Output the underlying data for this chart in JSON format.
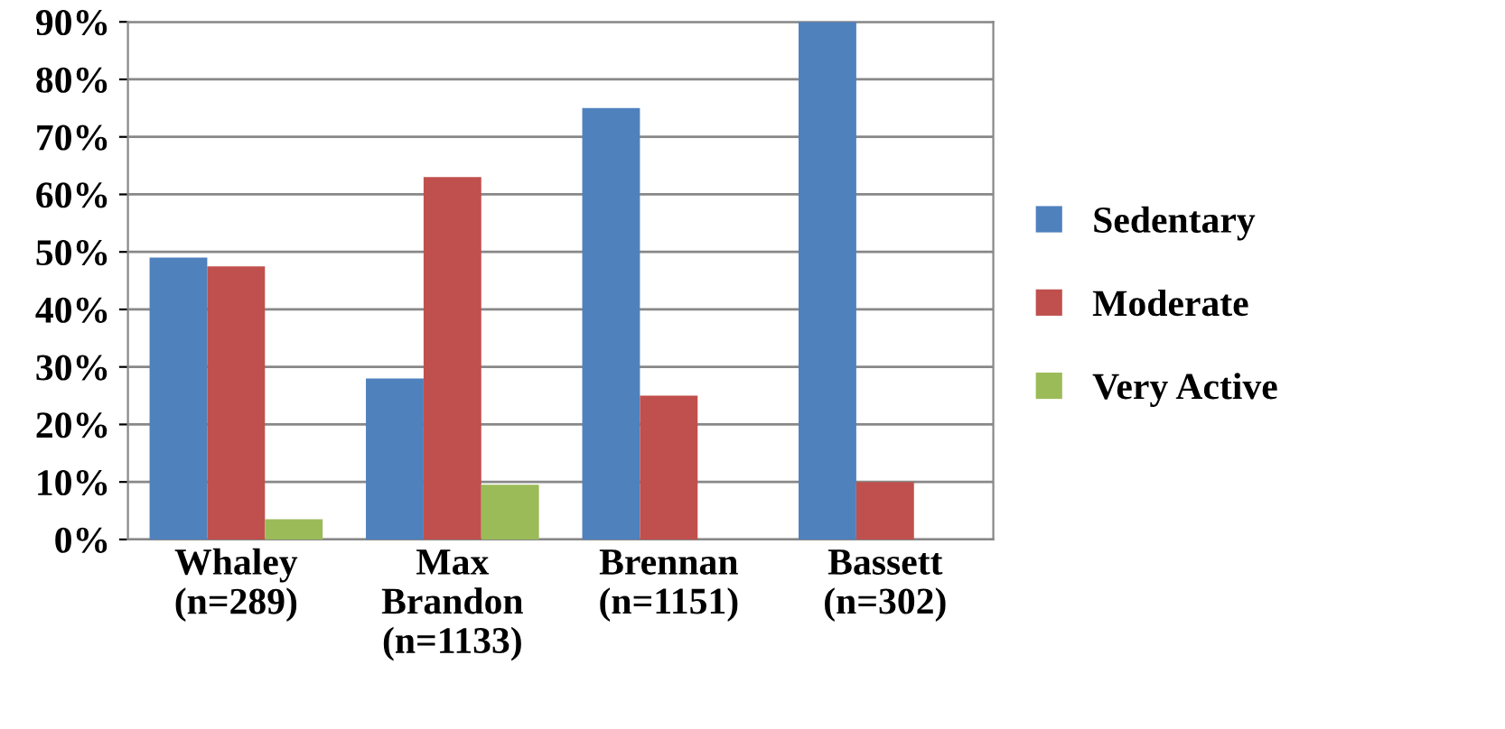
{
  "chart_data": {
    "type": "bar",
    "categories": [
      "Whaley\n(n=289)",
      "Max\nBrandon\n(n=1133)",
      "Brennan\n(n=1151)",
      "Bassett\n(n=302)"
    ],
    "series": [
      {
        "name": "Sedentary",
        "color": "#4f81bd",
        "values": [
          49,
          28,
          75,
          90
        ]
      },
      {
        "name": "Moderate",
        "color": "#c0504d",
        "values": [
          47.5,
          63,
          25,
          10
        ]
      },
      {
        "name": "Very Active",
        "color": "#9bbb59",
        "values": [
          3.5,
          9.5,
          0,
          0
        ]
      }
    ],
    "ylim": [
      0,
      90
    ],
    "yticks": [
      {
        "value": 0,
        "label": "0%"
      },
      {
        "value": 10,
        "label": "10%"
      },
      {
        "value": 20,
        "label": "20%"
      },
      {
        "value": 30,
        "label": "30%"
      },
      {
        "value": 40,
        "label": "40%"
      },
      {
        "value": 50,
        "label": "50%"
      },
      {
        "value": 60,
        "label": "60%"
      },
      {
        "value": 70,
        "label": "70%"
      },
      {
        "value": 80,
        "label": "80%"
      },
      {
        "value": 90,
        "label": "90%"
      }
    ],
    "grid": "y",
    "legend": "right"
  }
}
